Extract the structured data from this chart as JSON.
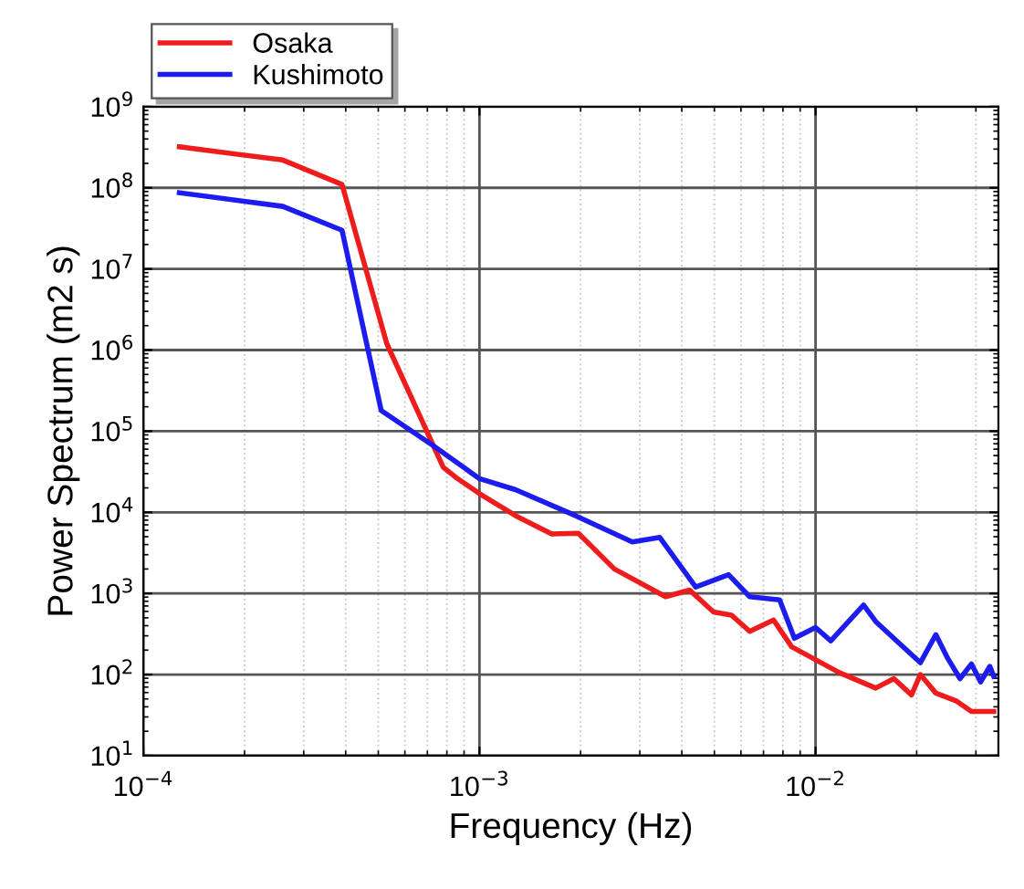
{
  "chart_data": {
    "type": "line",
    "xlabel": "Frequency (Hz)",
    "ylabel": "Power Spectrum (m2 s)",
    "log": "xy",
    "grid": true,
    "legend": "top left",
    "line_style": "solid",
    "xlim": [
      0.0001,
      0.035
    ],
    "ylim": [
      10,
      1000000000
    ],
    "xticks": [
      {
        "value": 0.0001,
        "label": "10$^{−4}$"
      },
      {
        "value": 0.001,
        "label": "10$^{−3}$"
      },
      {
        "value": 0.01,
        "label": "10$^{−2}$"
      }
    ],
    "yticks": [
      {
        "value": 10,
        "label": "10$^{1}$"
      },
      {
        "value": 100,
        "label": "10$^{2}$"
      },
      {
        "value": 1000,
        "label": "10$^{3}$"
      },
      {
        "value": 10000,
        "label": "10$^{4}$"
      },
      {
        "value": 100000,
        "label": "10$^{5}$"
      },
      {
        "value": 1000000,
        "label": "10$^{6}$"
      },
      {
        "value": 10000000,
        "label": "10$^{7}$"
      },
      {
        "value": 100000000,
        "label": "10$^{8}$"
      },
      {
        "value": 1000000000,
        "label": "10$^{9}$"
      }
    ],
    "series": [
      {
        "name": "Osaka",
        "color": "#ee1c1c",
        "x": [
          0.000128,
          0.00026,
          0.00039,
          0.00053,
          0.00078,
          0.00085,
          0.001,
          0.00128,
          0.00164,
          0.00197,
          0.00252,
          0.00358,
          0.00422,
          0.00497,
          0.00562,
          0.00637,
          0.0075,
          0.00849,
          0.0118,
          0.0151,
          0.0171,
          0.0193,
          0.0205,
          0.0228,
          0.0263,
          0.0291,
          0.0339
        ],
        "values": [
          320000000,
          220000000,
          110000000,
          1200000,
          36000,
          27000,
          17000,
          9100,
          5400,
          5500,
          2000,
          910,
          1100,
          590,
          540,
          340,
          470,
          220,
          105,
          68,
          89,
          56,
          100,
          59,
          47,
          35,
          35
        ]
      },
      {
        "name": "Kushimoto",
        "color": "#1c1cee",
        "x": [
          0.000128,
          0.00026,
          0.00039,
          0.00051,
          0.00073,
          0.001,
          0.00128,
          0.00193,
          0.00285,
          0.00344,
          0.0044,
          0.00551,
          0.00637,
          0.00782,
          0.00865,
          0.01,
          0.0111,
          0.0139,
          0.0151,
          0.0178,
          0.0205,
          0.0228,
          0.0247,
          0.0269,
          0.0291,
          0.031,
          0.033,
          0.0339
        ],
        "values": [
          87000000,
          59000000,
          30000000,
          180000,
          66000,
          26000,
          19000,
          9100,
          4300,
          4900,
          1200,
          1700,
          910,
          830,
          280,
          380,
          260,
          720,
          450,
          240,
          140,
          310,
          160,
          89,
          135,
          81,
          126,
          95
        ]
      }
    ]
  }
}
